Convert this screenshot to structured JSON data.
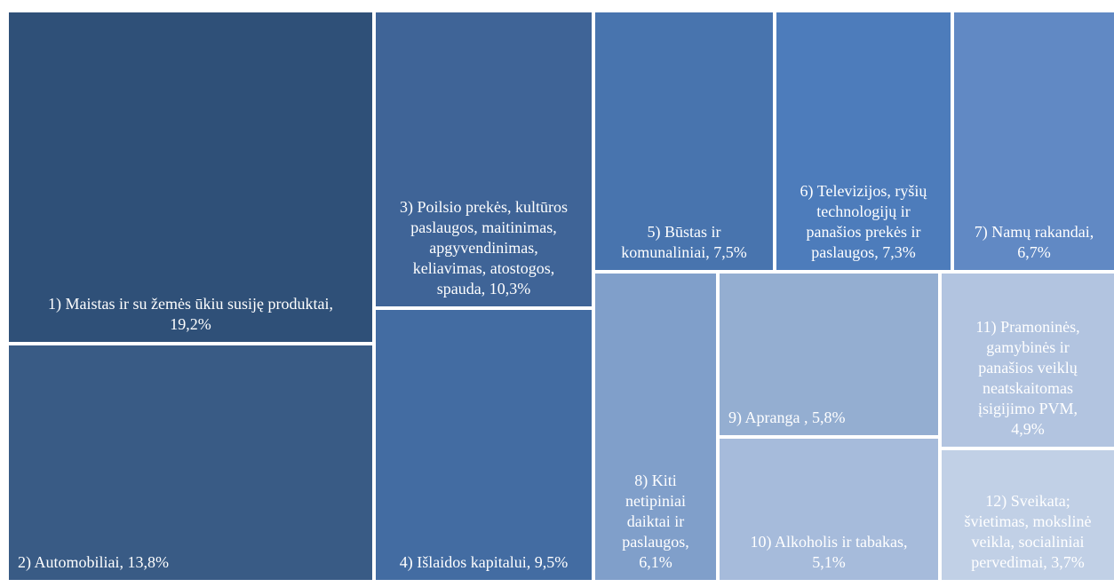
{
  "chart_data": {
    "type": "treemap",
    "title": "",
    "items": [
      {
        "id": 1,
        "label": "1) Maistas ir su žemės ūkiu susiję produktai,\n19,2%",
        "category": "Maistas ir su žemės ūkiu susiję produktai",
        "value": 19.2,
        "color": "#2f5078"
      },
      {
        "id": 2,
        "label": "2) Automobiliai, 13,8%",
        "category": "Automobiliai",
        "value": 13.8,
        "color": "#395b85"
      },
      {
        "id": 3,
        "label": "3) Poilsio prekės, kultūros\npaslaugos, maitinimas,\napgyvendinimas,\nkeliavimas, atostogos,\nspauda, 10,3%",
        "category": "Poilsio prekės, kultūros paslaugos, maitinimas, apgyvendinimas, keliavimas, atostogos, spauda",
        "value": 10.3,
        "color": "#3f6497"
      },
      {
        "id": 4,
        "label": "4) Išlaidos kapitalui, 9,5%",
        "category": "Išlaidos kapitalui",
        "value": 9.5,
        "color": "#436ca2"
      },
      {
        "id": 5,
        "label": "5) Būstas ir\nkomunaliniai, 7,5%",
        "category": "Būstas ir komunaliniai",
        "value": 7.5,
        "color": "#4874ae"
      },
      {
        "id": 6,
        "label": "6) Televizijos, ryšių\ntechnologijų ir\npanašios prekės ir\npaslaugos, 7,3%",
        "category": "Televizijos, ryšių technologijų ir panašios prekės ir paslaugos",
        "value": 7.3,
        "color": "#4d7cbb"
      },
      {
        "id": 7,
        "label": "7) Namų rakandai,\n6,7%",
        "category": "Namų rakandai",
        "value": 6.7,
        "color": "#6189c4"
      },
      {
        "id": 8,
        "label": "8) Kiti\nnetipiniai\ndaiktai ir\npaslaugos,\n6,1%",
        "category": "Kiti netipiniai daiktai ir paslaugos",
        "value": 6.1,
        "color": "#809fca"
      },
      {
        "id": 9,
        "label": "9) Apranga , 5,8%",
        "category": "Apranga",
        "value": 5.8,
        "color": "#94aed1"
      },
      {
        "id": 10,
        "label": "10) Alkoholis ir tabakas,\n5,1%",
        "category": "Alkoholis ir tabakas",
        "value": 5.1,
        "color": "#a6bbdb"
      },
      {
        "id": 11,
        "label": "11) Pramoninės,\ngamybinės ir\npanašios veiklų\nneatskaitomas\nįsigijimo PVM,\n4,9%",
        "category": "Pramoninės, gamybinės ir panašios veiklų neatskaitomas įsigijimo PVM",
        "value": 4.9,
        "color": "#b2c4e0"
      },
      {
        "id": 12,
        "label": "12) Sveikata;\nšvietimas, mokslinė\nveikla, socialiniai\npervedimai, 3,7%",
        "category": "Sveikata; švietimas, mokslinė veikla, socialiniai pervedimai",
        "value": 3.7,
        "color": "#c1d0e6"
      }
    ]
  }
}
